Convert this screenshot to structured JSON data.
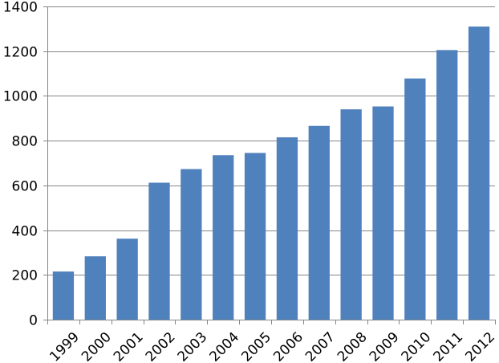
{
  "chart_data": {
    "type": "bar",
    "title": "",
    "xlabel": "",
    "ylabel": "",
    "categories": [
      "1999",
      "2000",
      "2001",
      "2002",
      "2003",
      "2004",
      "2005",
      "2006",
      "2007",
      "2008",
      "2009",
      "2010",
      "2011",
      "2012"
    ],
    "values": [
      215,
      283,
      362,
      612,
      673,
      735,
      745,
      815,
      866,
      940,
      953,
      1078,
      1205,
      1310
    ],
    "ylim": [
      0,
      1400
    ],
    "yticks": [
      0,
      200,
      400,
      600,
      800,
      1000,
      1200,
      1400
    ],
    "grid": "horizontal",
    "legend": "none",
    "bar_color": "#4f81bd",
    "grid_color": "#868686"
  }
}
